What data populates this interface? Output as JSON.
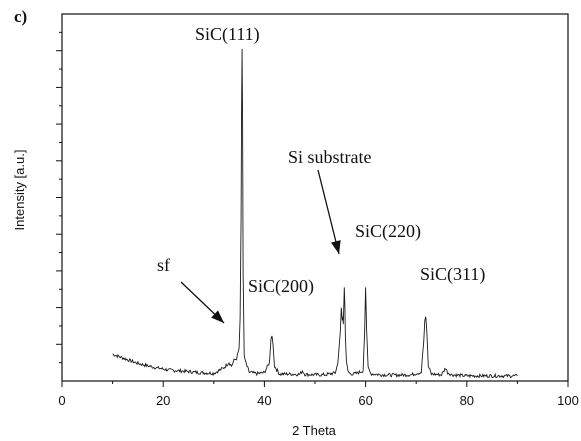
{
  "chart_data": {
    "type": "line",
    "panel_label": "c)",
    "xlabel": "2 Theta",
    "ylabel": "Intensity [a.u.]",
    "xlim": [
      0,
      100
    ],
    "ylim": [
      0,
      100
    ],
    "y_tick_labels_shown": false,
    "grid": false,
    "x_ticks": [
      0,
      20,
      40,
      60,
      80,
      100
    ],
    "x_tick_labels": [
      "0",
      "20",
      "40",
      "60",
      "80",
      "100"
    ],
    "series": [
      {
        "x": [
          10,
          12,
          15,
          18,
          21,
          24,
          27,
          30,
          32,
          33,
          33.5,
          34,
          34.5,
          35,
          35.2,
          35.4,
          35.5,
          35.6,
          35.7,
          35.8,
          36,
          36.3,
          37,
          38.5,
          40,
          41,
          41.3,
          41.5,
          41.7,
          42,
          43,
          45,
          47,
          47.5,
          48,
          50,
          52,
          54,
          54.5,
          55,
          55.2,
          55.4,
          55.5,
          55.6,
          55.8,
          55.9,
          56,
          56.2,
          56.5,
          57,
          58,
          59.5,
          59.8,
          60,
          60.2,
          60.5,
          61,
          63,
          66,
          69,
          71,
          71.5,
          71.7,
          71.9,
          72.1,
          72.4,
          73,
          75,
          75.5,
          75.8,
          76.2,
          77,
          80,
          85,
          90
        ],
        "y": [
          7.3,
          6.3,
          4.8,
          3.8,
          3.0,
          2.7,
          2.3,
          2.1,
          3.6,
          5.1,
          4.1,
          5.6,
          6.1,
          9.0,
          17,
          45,
          75,
          90.5,
          70,
          30,
          7.0,
          5.0,
          2.4,
          2.0,
          2.3,
          5.0,
          11.5,
          12.3,
          10.0,
          4.0,
          1.9,
          1.9,
          1.8,
          2.8,
          1.8,
          1.7,
          1.7,
          2.2,
          4.8,
          13.5,
          20.0,
          16.5,
          17.5,
          15.5,
          25.5,
          20.0,
          12.0,
          5.5,
          2.6,
          1.9,
          2.0,
          2.8,
          13.0,
          25.5,
          14.0,
          3.5,
          2.0,
          1.7,
          1.6,
          1.7,
          2.4,
          11.0,
          16.5,
          17.5,
          13.5,
          4.0,
          1.9,
          1.7,
          2.8,
          3.6,
          2.3,
          1.7,
          1.4,
          1.4,
          1.4
        ]
      }
    ],
    "annotations": [
      {
        "text": "SiC(111)",
        "x": 35.5,
        "y": 90.5
      },
      {
        "text": "Si substrate",
        "x": 55.6,
        "y": 25.5
      },
      {
        "text": "SiC(220)",
        "x": 60,
        "y": 25.5
      },
      {
        "text": "SiC(200)",
        "x": 41.5,
        "y": 12.3
      },
      {
        "text": "SiC(311)",
        "x": 71.9,
        "y": 17.5
      },
      {
        "text": "sf",
        "x": 32.5,
        "y": 8.0
      }
    ],
    "colors": {
      "line": "#1a1a1a",
      "axes": "#111111",
      "arrow": "#111111"
    }
  }
}
